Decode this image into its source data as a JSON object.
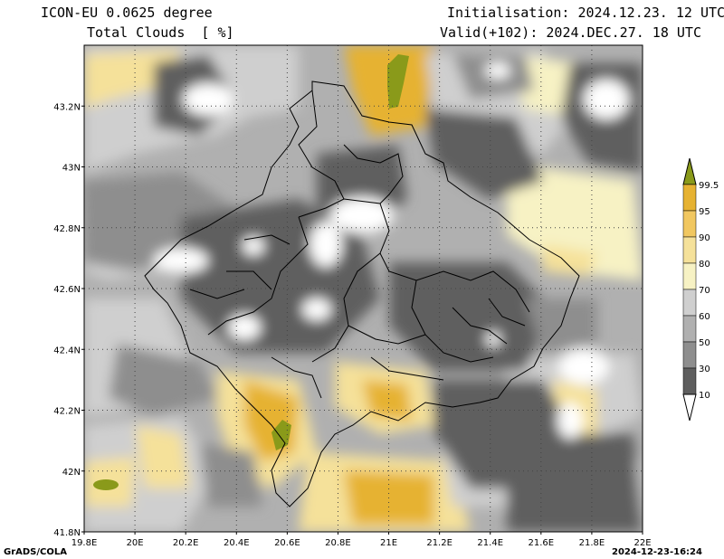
{
  "header": {
    "model": "ICON-EU 0.0625 degree",
    "variable": "Total Clouds  [ %]",
    "init": "Initialisation: 2024.12.23. 12 UTC",
    "valid": "Valid(+102): 2024.DEC.27. 18 UTC"
  },
  "axes": {
    "lat_labels": [
      "43.2N",
      "43N",
      "42.8N",
      "42.6N",
      "42.4N",
      "42.2N",
      "42N",
      "41.8N"
    ],
    "lat_values": [
      43.2,
      43.0,
      42.8,
      42.6,
      42.4,
      42.2,
      42.0,
      41.8
    ],
    "lon_labels": [
      "19.8E",
      "20E",
      "20.2E",
      "20.4E",
      "20.6E",
      "20.8E",
      "21E",
      "21.2E",
      "21.4E",
      "21.6E",
      "21.8E",
      "22E"
    ],
    "lon_values": [
      19.8,
      20.0,
      20.2,
      20.4,
      20.6,
      20.8,
      21.0,
      21.2,
      21.4,
      21.6,
      21.8,
      22.0
    ],
    "lat_range": [
      41.8,
      43.4
    ],
    "lon_range": [
      19.8,
      22.0
    ],
    "grid": "dotted"
  },
  "legend": {
    "levels": [
      "99.5",
      "95",
      "90",
      "80",
      "70",
      "60",
      "50",
      "30",
      "10"
    ],
    "colors": [
      "#8a9a1a",
      "#e6b232",
      "#f1c760",
      "#f5e19a",
      "#f7f2c4",
      "#cfcfcf",
      "#b0b0b0",
      "#8e8e8e",
      "#5e5e5e",
      "#ffffff"
    ]
  },
  "footer": {
    "left": "GrADS/COLA",
    "right": "2024-12-23-16:24"
  }
}
